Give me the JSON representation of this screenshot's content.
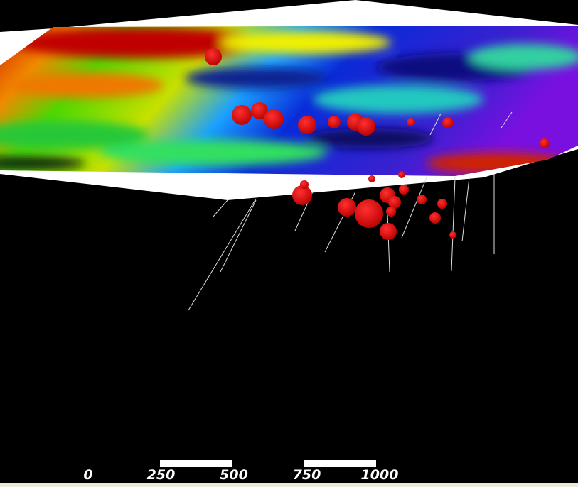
{
  "scale_bar": {
    "ticks": [
      0,
      250,
      500,
      750,
      1000
    ]
  }
}
